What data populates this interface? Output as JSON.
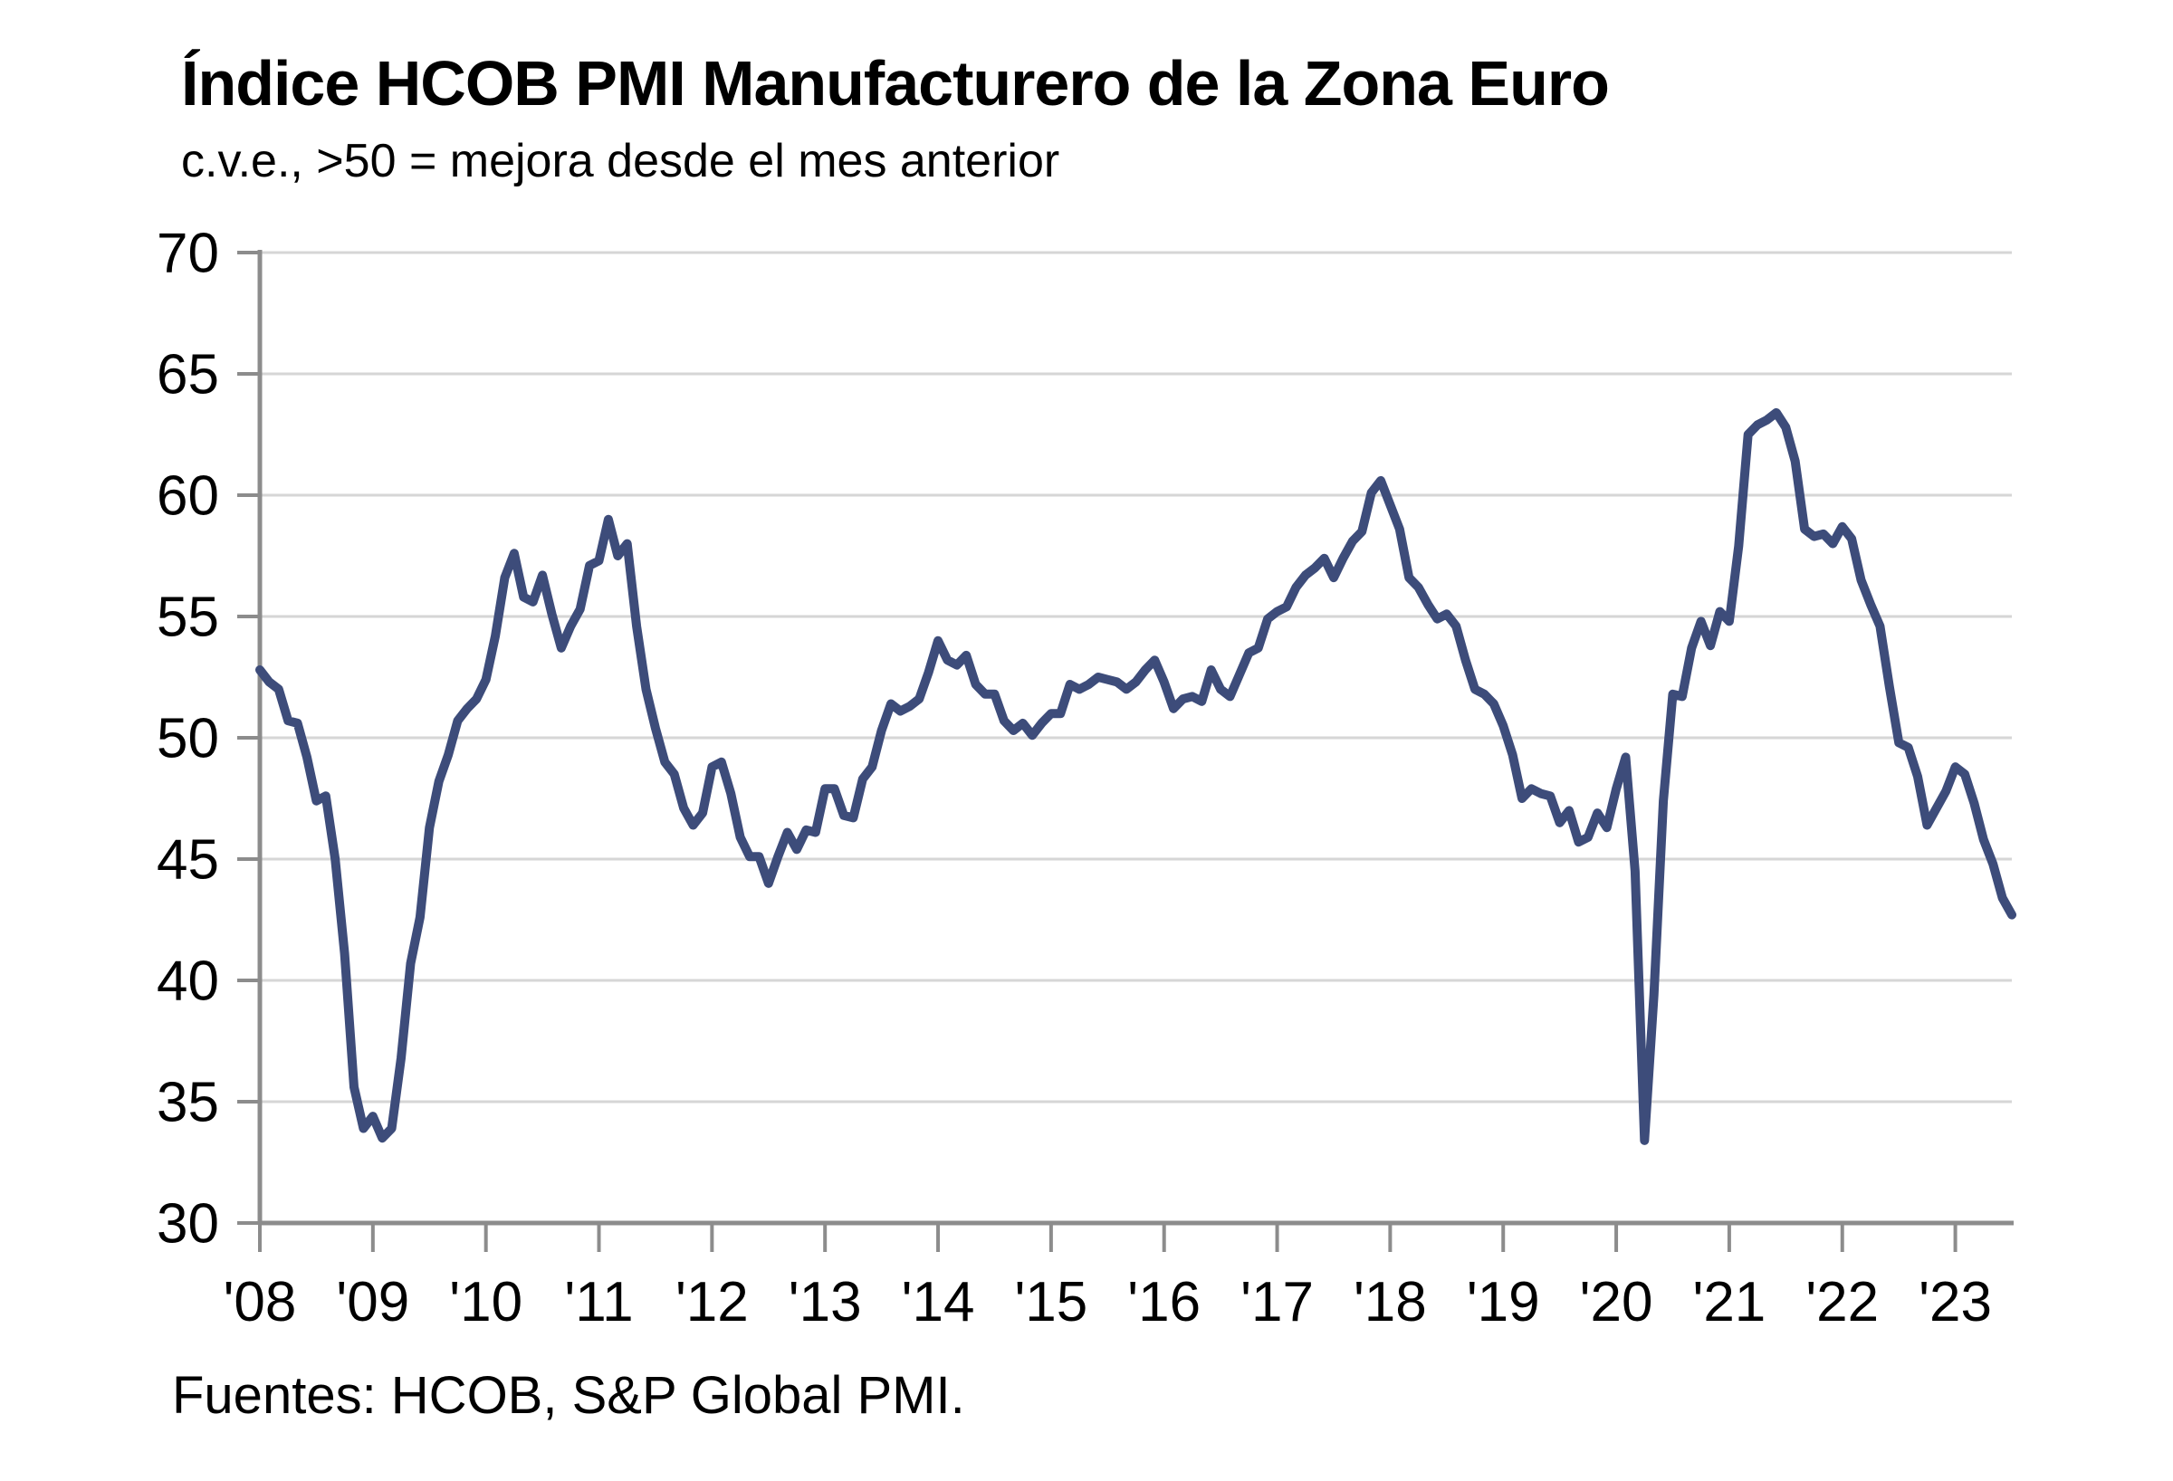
{
  "header": {
    "title": "Índice HCOB PMI Manufacturero de la Zona Euro",
    "subtitle": "c.v.e., >50 = mejora desde el mes anterior"
  },
  "footer": {
    "source": "Fuentes: HCOB, S&P Global PMI."
  },
  "colors": {
    "line": "#3d4c7a",
    "gridline": "#d6d6d6",
    "axis": "#8c8c8c",
    "text": "#000000",
    "background": "#ffffff"
  },
  "chart_data": {
    "type": "line",
    "title": "Índice HCOB PMI Manufacturero de la Zona Euro",
    "subtitle": "c.v.e., >50 = mejora desde el mes anterior",
    "source": "Fuentes: HCOB, S&P Global PMI.",
    "ylabel": "",
    "xlabel": "",
    "ylim": [
      30,
      70
    ],
    "y_ticks": [
      30,
      35,
      40,
      45,
      50,
      55,
      60,
      65,
      70
    ],
    "x_tick_labels": [
      "'08",
      "'09",
      "'10",
      "'11",
      "'12",
      "'13",
      "'14",
      "'15",
      "'16",
      "'17",
      "'18",
      "'19",
      "'20",
      "'21",
      "'22",
      "'23"
    ],
    "grid": true,
    "legend_position": "none",
    "reference_level": 50,
    "series": [
      {
        "name": "HCOB PMI Manufacturero de la Zona Euro",
        "frequency": "monthly",
        "start": "2008-01",
        "end": "2023-07",
        "values": [
          52.8,
          52.3,
          52.0,
          50.7,
          50.6,
          49.2,
          47.4,
          47.6,
          45.0,
          41.1,
          35.6,
          33.9,
          34.4,
          33.5,
          33.9,
          36.8,
          40.7,
          42.6,
          46.3,
          48.2,
          49.3,
          50.7,
          51.2,
          51.6,
          52.4,
          54.2,
          56.6,
          57.6,
          55.8,
          55.6,
          56.7,
          55.1,
          53.7,
          54.6,
          55.3,
          57.1,
          57.3,
          59.0,
          57.5,
          58.0,
          54.6,
          52.0,
          50.4,
          49.0,
          48.5,
          47.1,
          46.4,
          46.9,
          48.8,
          49.0,
          47.7,
          45.9,
          45.1,
          45.1,
          44.0,
          45.1,
          46.1,
          45.4,
          46.2,
          46.1,
          47.9,
          47.9,
          46.8,
          46.7,
          48.3,
          48.8,
          50.3,
          51.4,
          51.1,
          51.3,
          51.6,
          52.7,
          54.0,
          53.2,
          53.0,
          53.4,
          52.2,
          51.8,
          51.8,
          50.7,
          50.3,
          50.6,
          50.1,
          50.6,
          51.0,
          51.0,
          52.2,
          52.0,
          52.2,
          52.5,
          52.4,
          52.3,
          52.0,
          52.3,
          52.8,
          53.2,
          52.3,
          51.2,
          51.6,
          51.7,
          51.5,
          52.8,
          52.0,
          51.7,
          52.6,
          53.5,
          53.7,
          54.9,
          55.2,
          55.4,
          56.2,
          56.7,
          57.0,
          57.4,
          56.6,
          57.4,
          58.1,
          58.5,
          60.1,
          60.6,
          59.6,
          58.6,
          56.6,
          56.2,
          55.5,
          54.9,
          55.1,
          54.6,
          53.2,
          52.0,
          51.8,
          51.4,
          50.5,
          49.3,
          47.5,
          47.9,
          47.7,
          47.6,
          46.5,
          47.0,
          45.7,
          45.9,
          46.9,
          46.3,
          47.9,
          49.2,
          44.5,
          33.4,
          39.4,
          47.4,
          51.8,
          51.7,
          53.7,
          54.8,
          53.8,
          55.2,
          54.8,
          57.9,
          62.5,
          62.9,
          63.1,
          63.4,
          62.8,
          61.4,
          58.6,
          58.3,
          58.4,
          58.0,
          58.7,
          58.2,
          56.5,
          55.5,
          54.6,
          52.1,
          49.8,
          49.6,
          48.4,
          46.4,
          47.1,
          47.8,
          48.8,
          48.5,
          47.3,
          45.8,
          44.8,
          43.4,
          42.7
        ]
      }
    ]
  }
}
